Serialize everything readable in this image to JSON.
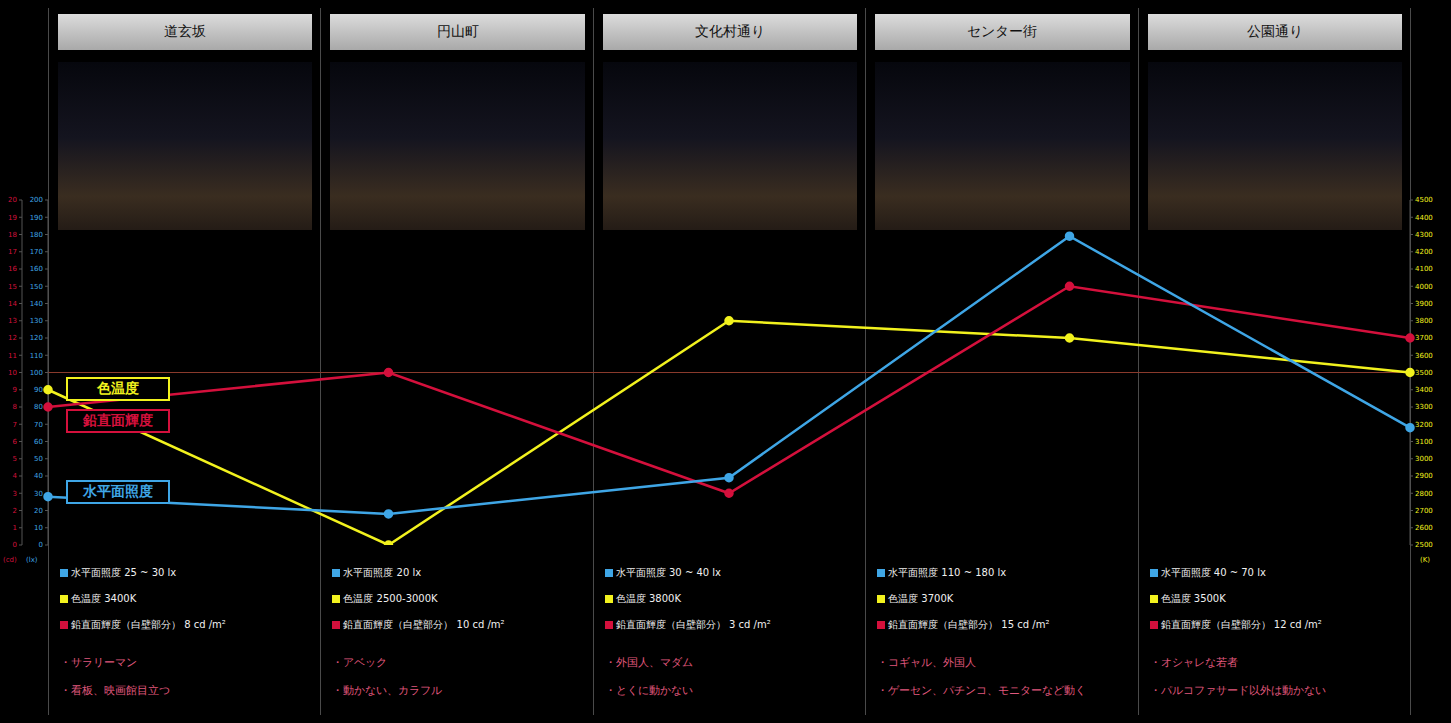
{
  "chart_data": {
    "type": "line",
    "categories": [
      "道玄坂",
      "円山町",
      "文化村通り",
      "センター街",
      "公園通り"
    ],
    "series": [
      {
        "name": "色温度",
        "color": "#f2f21e",
        "values": [
          3400,
          2500,
          3800,
          3700,
          3500
        ],
        "axis": "y2",
        "marker": "circle"
      },
      {
        "name": "鉛直面輝度",
        "color": "#d4103c",
        "values": [
          8,
          10,
          3,
          15,
          12
        ],
        "axis": "y3",
        "marker": "circle"
      },
      {
        "name": "水平面照度",
        "color": "#3fa6e6",
        "values": [
          28,
          18,
          39,
          179,
          68
        ],
        "axis": "y",
        "marker": "circle"
      }
    ],
    "ylim": [
      0,
      200
    ],
    "yticks": [
      0,
      10,
      20,
      30,
      40,
      50,
      60,
      70,
      80,
      90,
      100,
      110,
      120,
      130,
      140,
      150,
      160,
      170,
      180,
      190,
      200
    ],
    "y2lim": [
      2500,
      4500
    ],
    "y2ticks": [
      2500,
      2600,
      2700,
      2800,
      2900,
      3000,
      3100,
      3200,
      3300,
      3400,
      3500,
      3600,
      3700,
      3800,
      3900,
      4000,
      4100,
      4200,
      4300,
      4400,
      4500
    ],
    "y3lim": [
      0,
      20
    ],
    "y3ticks": [
      0,
      1,
      2,
      3,
      4,
      5,
      6,
      7,
      8,
      9,
      10,
      11,
      12,
      13,
      14,
      15,
      16,
      17,
      18,
      19,
      20
    ],
    "y_unit": "(lx)",
    "y2_unit": "(K)",
    "y3_unit": "(cd)",
    "reference_y": 100,
    "grid": false,
    "legend": "left",
    "column_text": [
      {
        "readings": [
          "水平面照度 25 ~ 30 lx",
          "色温度 3400K",
          "鉛直面輝度（白壁部分） 8 cd /m²"
        ],
        "notes": [
          "・サラリーマン",
          "・看板、映画館目立つ"
        ]
      },
      {
        "readings": [
          "水平面照度 20 lx",
          "色温度 2500-3000K",
          "鉛直面輝度（白壁部分） 10 cd /m²"
        ],
        "notes": [
          "・アベック",
          "・動かない、カラフル"
        ]
      },
      {
        "readings": [
          "水平面照度 30 ~ 40 lx",
          "色温度 3800K",
          "鉛直面輝度（白壁部分） 3 cd /m²"
        ],
        "notes": [
          "・外国人、マダム",
          "・とくに動かない"
        ]
      },
      {
        "readings": [
          "水平面照度 110 ~ 180 lx",
          "色温度 3700K",
          "鉛直面輝度（白壁部分） 15 cd /m²"
        ],
        "notes": [
          "・コギャル、外国人",
          "・ゲーセン、パチンコ、モニターなど動く"
        ]
      },
      {
        "readings": [
          "水平面照度 40 ~ 70 lx",
          "色温度 3500K",
          "鉛直面輝度（白壁部分） 12 cd /m²"
        ],
        "notes": [
          "・オシャレな若者",
          "・パルコファサード以外は動かない"
        ]
      }
    ]
  }
}
